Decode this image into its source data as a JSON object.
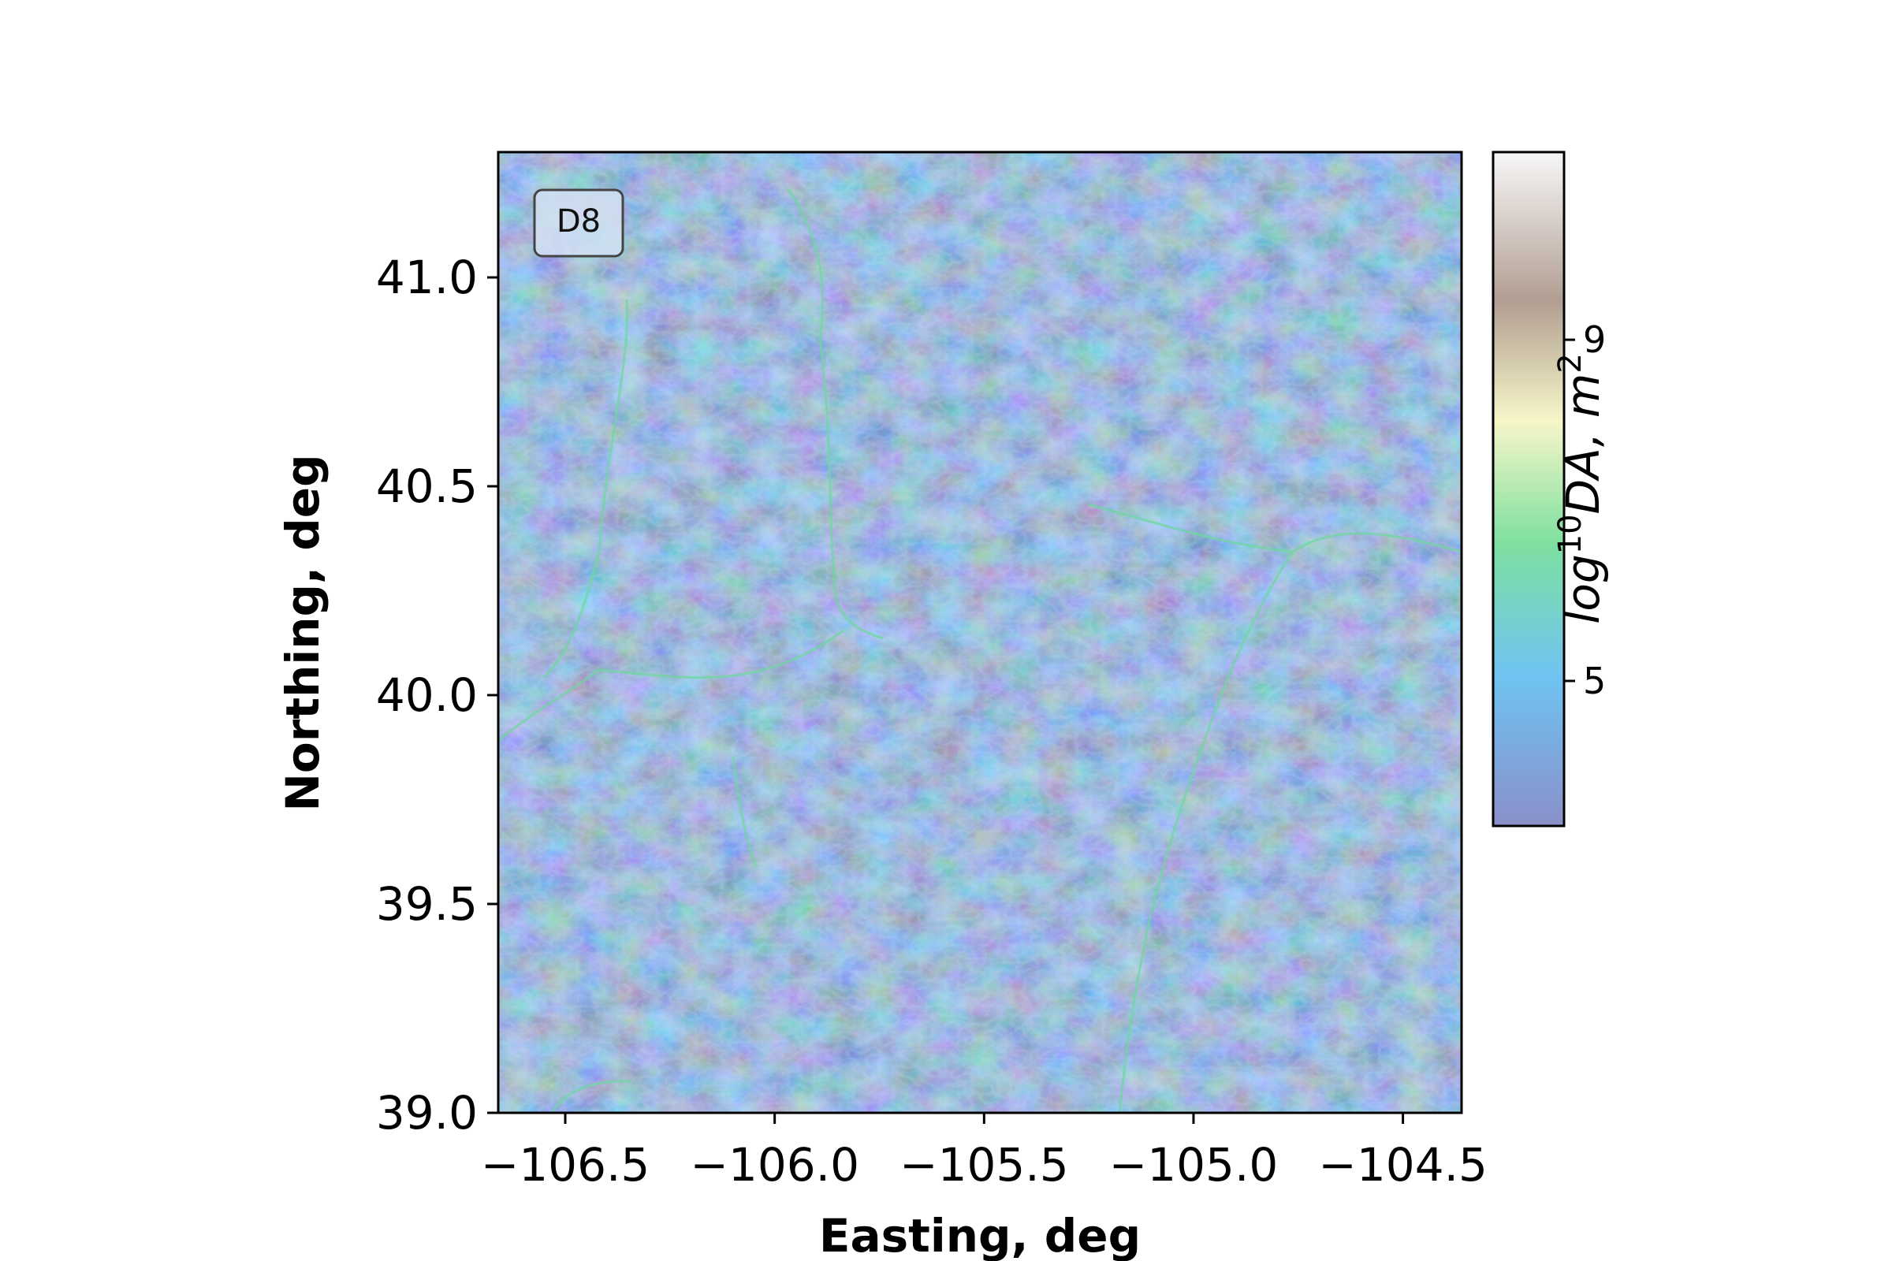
{
  "chart_data": {
    "type": "heatmap",
    "title": "",
    "panel_label": "D8",
    "xlabel": "Easting, deg",
    "ylabel": "Northing, deg",
    "xlim": [
      -106.66,
      -104.36
    ],
    "ylim": [
      39.0,
      41.3
    ],
    "xticks": [
      -106.5,
      -106.0,
      -105.5,
      -105.0,
      -104.5
    ],
    "xtick_labels": [
      "−106.5",
      "−106.0",
      "−105.5",
      "−105.0",
      "−104.5"
    ],
    "yticks": [
      39.0,
      39.5,
      40.0,
      40.5,
      41.0
    ],
    "ytick_labels": [
      "39.0",
      "39.5",
      "40.0",
      "40.5",
      "41.0"
    ],
    "colorbar": {
      "label_parts": {
        "a": "log",
        "b": "10",
        "c": "DA, m",
        "d": "2"
      },
      "range": [
        3.3,
        11.2
      ],
      "ticks": [
        5,
        9
      ],
      "tick_labels": [
        "5",
        "9"
      ],
      "colormap_stops": [
        "#8a8fc9",
        "#6fc3f2",
        "#7fe0a0",
        "#f6f6c8",
        "#b29e92",
        "#f7f7f7"
      ]
    },
    "image_description_colors": {
      "terrain_base": "#4c6fa0",
      "terrain_dark": "#2e4c78",
      "terrain_light": "#88aee0",
      "channels": "#6fd7a0"
    }
  }
}
